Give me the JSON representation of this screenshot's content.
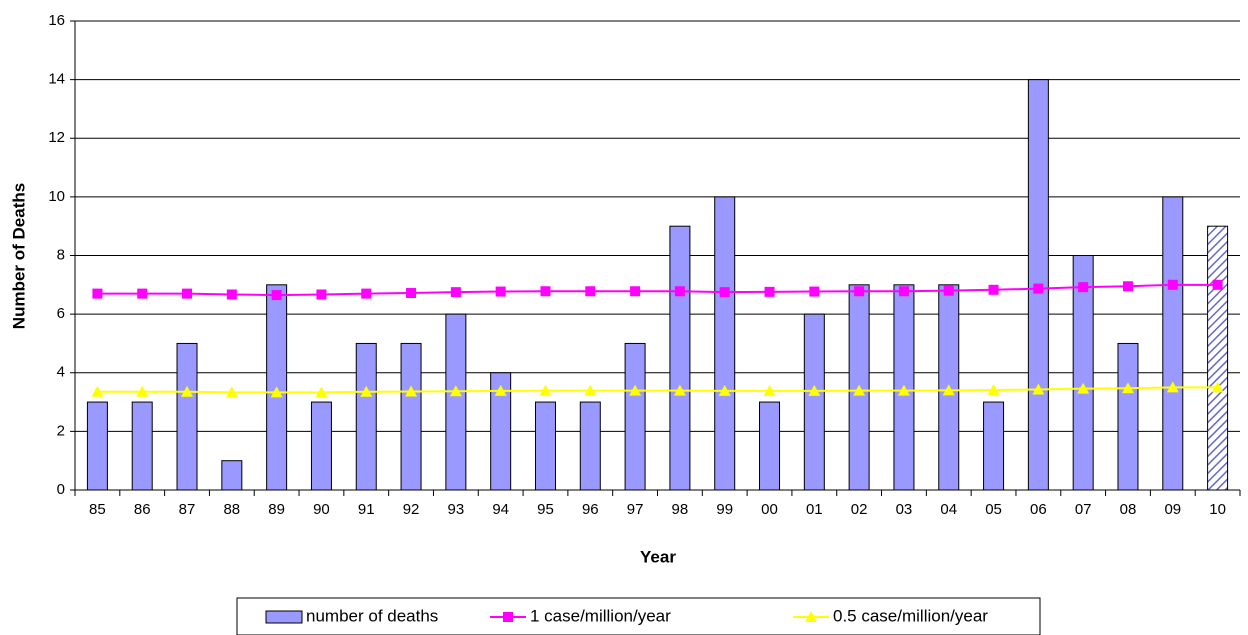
{
  "chart_data": {
    "type": "bar",
    "x_label": "Year",
    "y_label": "Number of Deaths",
    "categories": [
      "85",
      "86",
      "87",
      "88",
      "89",
      "90",
      "91",
      "92",
      "93",
      "94",
      "95",
      "96",
      "97",
      "98",
      "99",
      "00",
      "01",
      "02",
      "03",
      "04",
      "05",
      "06",
      "07",
      "08",
      "09",
      "10"
    ],
    "series": [
      {
        "name": "number of deaths",
        "type": "bar",
        "color": "#9999ff",
        "hatched_last": true,
        "values": [
          3,
          3,
          5,
          1,
          7,
          3,
          5,
          5,
          6,
          4,
          3,
          3,
          5,
          9,
          10,
          3,
          6,
          7,
          7,
          7,
          3,
          14,
          8,
          5,
          10,
          9
        ]
      },
      {
        "name": "1 case/million/year",
        "type": "line",
        "marker": "square",
        "color": "#ff00ff",
        "values": [
          6.7,
          6.7,
          6.7,
          6.67,
          6.65,
          6.67,
          6.7,
          6.72,
          6.75,
          6.77,
          6.78,
          6.78,
          6.78,
          6.78,
          6.75,
          6.76,
          6.77,
          6.78,
          6.78,
          6.8,
          6.83,
          6.87,
          6.92,
          6.95,
          7.0,
          7.0
        ]
      },
      {
        "name": "0.5 case/million/year",
        "type": "line",
        "marker": "triangle",
        "color": "#ffff00",
        "values": [
          3.35,
          3.35,
          3.35,
          3.33,
          3.33,
          3.33,
          3.35,
          3.36,
          3.37,
          3.38,
          3.39,
          3.39,
          3.39,
          3.39,
          3.38,
          3.38,
          3.38,
          3.39,
          3.39,
          3.4,
          3.41,
          3.43,
          3.46,
          3.47,
          3.5,
          3.5
        ]
      }
    ],
    "ylim": [
      0,
      16
    ],
    "yticks": [
      0,
      2,
      4,
      6,
      8,
      10,
      12,
      14,
      16
    ],
    "grid": true
  }
}
